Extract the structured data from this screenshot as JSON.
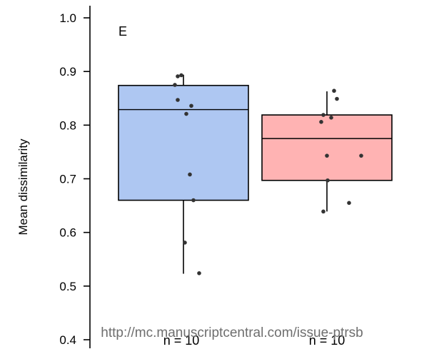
{
  "chart_data": {
    "type": "box",
    "panel_label": "E",
    "ylabel": "Mean dissimilarity",
    "xlabel": "",
    "ylim": [
      0.4,
      1.0
    ],
    "yticks": [
      0.4,
      0.5,
      0.6,
      0.7,
      0.8,
      0.9,
      1.0
    ],
    "ytick_labels": [
      "0.4",
      "0.5",
      "0.6",
      "0.7",
      "0.8",
      "0.9",
      "1.0"
    ],
    "grid": false,
    "groups": [
      {
        "fill": "#aec7f2",
        "n_label": "n = 10",
        "box": {
          "q1": 0.66,
          "median": 0.829,
          "q3": 0.874,
          "whisker_low": 0.523,
          "whisker_high": 0.894
        },
        "points": [
          0.893,
          0.891,
          0.875,
          0.847,
          0.836,
          0.821,
          0.708,
          0.66,
          0.581,
          0.524
        ]
      },
      {
        "fill": "#ffb3b3",
        "n_label": "n = 10",
        "box": {
          "q1": 0.697,
          "median": 0.775,
          "q3": 0.819,
          "whisker_low": 0.639,
          "whisker_high": 0.863
        },
        "points": [
          0.864,
          0.849,
          0.819,
          0.814,
          0.806,
          0.743,
          0.743,
          0.697,
          0.655,
          0.639
        ]
      }
    ],
    "watermark": "http://mc.manuscriptcentral.com/issue-ptrsb"
  }
}
